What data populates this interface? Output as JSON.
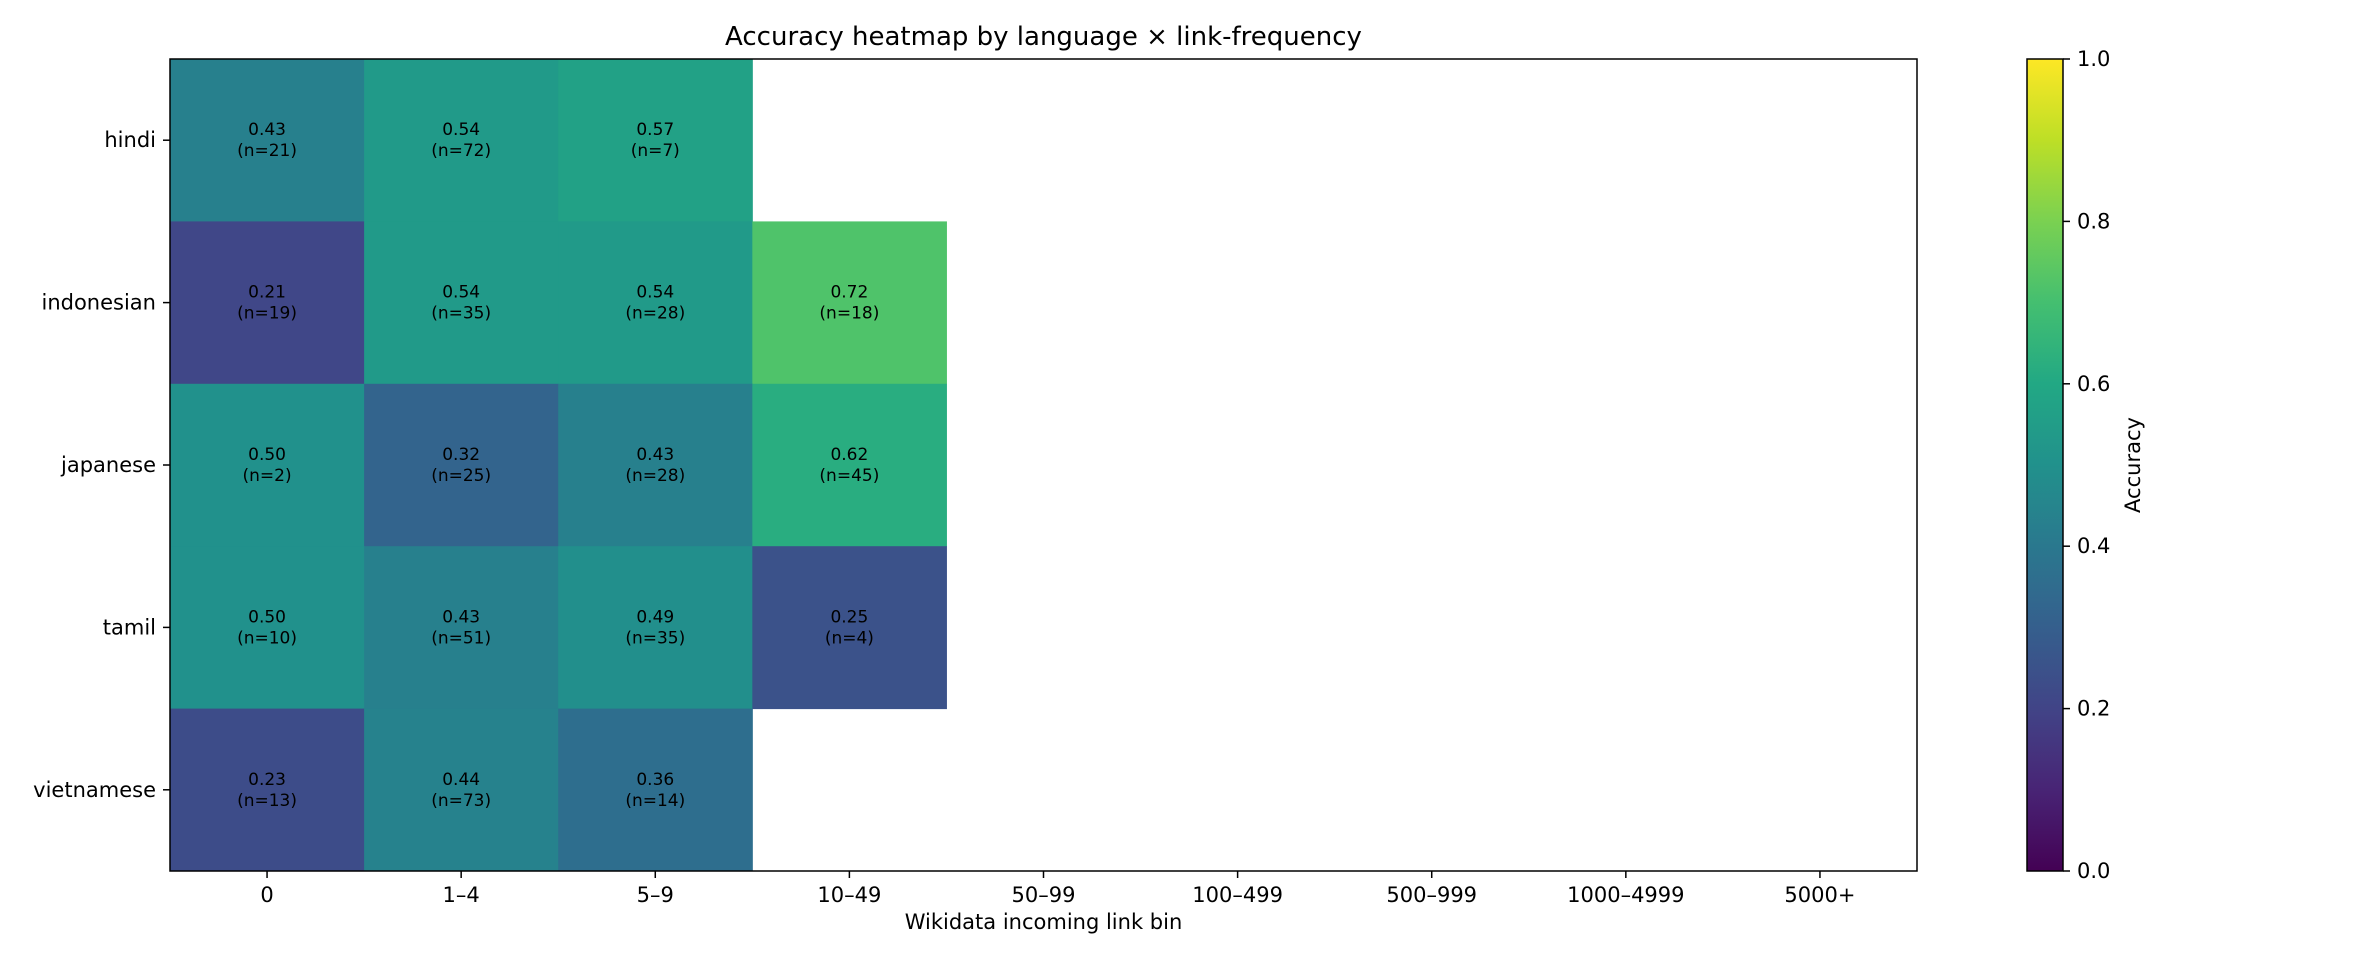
{
  "chart_data": {
    "type": "heatmap",
    "title": "Accuracy heatmap by language × link-frequency",
    "xlabel": "Wikidata incoming link bin",
    "ylabel": "",
    "x_categories": [
      "0",
      "1–4",
      "5–9",
      "10–49",
      "50–99",
      "100–499",
      "500–999",
      "1000–4999",
      "5000+"
    ],
    "y_categories": [
      "hindi",
      "indonesian",
      "japanese",
      "tamil",
      "vietnamese"
    ],
    "cells": [
      {
        "row": 0,
        "col": 0,
        "value": 0.43,
        "label": "0.43",
        "n_label": "(n=21)"
      },
      {
        "row": 0,
        "col": 1,
        "value": 0.54,
        "label": "0.54",
        "n_label": "(n=72)"
      },
      {
        "row": 0,
        "col": 2,
        "value": 0.57,
        "label": "0.57",
        "n_label": "(n=7)"
      },
      {
        "row": 1,
        "col": 0,
        "value": 0.21,
        "label": "0.21",
        "n_label": "(n=19)"
      },
      {
        "row": 1,
        "col": 1,
        "value": 0.54,
        "label": "0.54",
        "n_label": "(n=35)"
      },
      {
        "row": 1,
        "col": 2,
        "value": 0.54,
        "label": "0.54",
        "n_label": "(n=28)"
      },
      {
        "row": 1,
        "col": 3,
        "value": 0.72,
        "label": "0.72",
        "n_label": "(n=18)"
      },
      {
        "row": 2,
        "col": 0,
        "value": 0.5,
        "label": "0.50",
        "n_label": "(n=2)"
      },
      {
        "row": 2,
        "col": 1,
        "value": 0.32,
        "label": "0.32",
        "n_label": "(n=25)"
      },
      {
        "row": 2,
        "col": 2,
        "value": 0.43,
        "label": "0.43",
        "n_label": "(n=28)"
      },
      {
        "row": 2,
        "col": 3,
        "value": 0.62,
        "label": "0.62",
        "n_label": "(n=45)"
      },
      {
        "row": 3,
        "col": 0,
        "value": 0.5,
        "label": "0.50",
        "n_label": "(n=10)"
      },
      {
        "row": 3,
        "col": 1,
        "value": 0.43,
        "label": "0.43",
        "n_label": "(n=51)"
      },
      {
        "row": 3,
        "col": 2,
        "value": 0.49,
        "label": "0.49",
        "n_label": "(n=35)"
      },
      {
        "row": 3,
        "col": 3,
        "value": 0.25,
        "label": "0.25",
        "n_label": "(n=4)"
      },
      {
        "row": 4,
        "col": 0,
        "value": 0.23,
        "label": "0.23",
        "n_label": "(n=13)"
      },
      {
        "row": 4,
        "col": 1,
        "value": 0.44,
        "label": "0.44",
        "n_label": "(n=73)"
      },
      {
        "row": 4,
        "col": 2,
        "value": 0.36,
        "label": "0.36",
        "n_label": "(n=14)"
      }
    ],
    "colormap": "viridis",
    "value_range": [
      0,
      1
    ],
    "colorbar": {
      "label": "Accuracy",
      "ticks": [
        0.0,
        0.2,
        0.4,
        0.6,
        0.8,
        1.0
      ],
      "tick_labels": [
        "0.0",
        "0.2",
        "0.4",
        "0.6",
        "0.8",
        "1.0"
      ],
      "placement": "right"
    },
    "grid": false
  }
}
